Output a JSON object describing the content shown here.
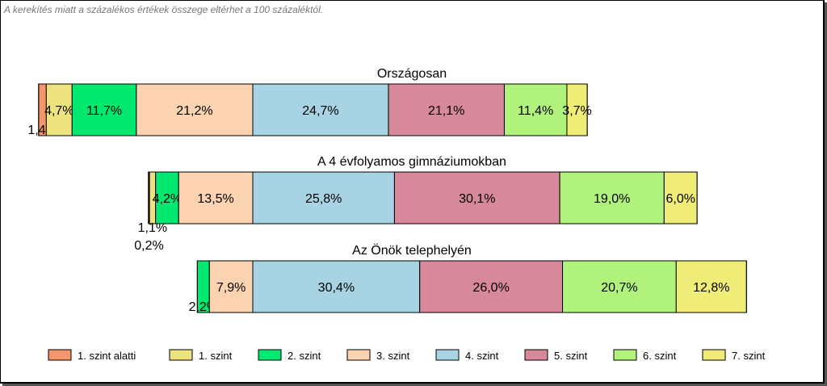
{
  "note": "A kerekítés miatt a  százalékos értékek összege eltérhet a 100 százaléktól.",
  "chart_data": {
    "type": "bar",
    "stacked": true,
    "orientation": "horizontal",
    "categories": [
      "1. szint alatti",
      "1. szint",
      "2. szint",
      "3. szint",
      "4. szint",
      "5. szint",
      "6. szint",
      "7. szint"
    ],
    "colors": [
      "#f4956b",
      "#ece37e",
      "#00e86f",
      "#fbd3b0",
      "#a7d3e3",
      "#d7889a",
      "#b0f27c",
      "#f0ec78"
    ],
    "groups": [
      {
        "title": "Országosan",
        "values": [
          1.4,
          4.7,
          11.7,
          21.2,
          24.7,
          21.1,
          11.4,
          3.7
        ],
        "labels": [
          "1,4%",
          "4,7%",
          "11,7%",
          "21,2%",
          "24,7%",
          "21,1%",
          "11,4%",
          "3,7%"
        ]
      },
      {
        "title": "A 4 évfolyamos gimnáziumokban",
        "values": [
          0.2,
          1.1,
          4.2,
          13.5,
          25.8,
          30.1,
          19.0,
          6.0
        ],
        "labels": [
          "0,2%",
          "1,1%",
          "4,2%",
          "13,5%",
          "25,8%",
          "30,1%",
          "19,0%",
          "6,0%"
        ]
      },
      {
        "title": "Az Önök telephelyén",
        "values": [
          0,
          0,
          2.2,
          7.9,
          30.4,
          26.0,
          20.7,
          12.8
        ],
        "labels": [
          "",
          "",
          "2,2%",
          "7,9%",
          "30,4%",
          "26,0%",
          "20,7%",
          "12,8%"
        ]
      }
    ],
    "legend_position": "bottom",
    "grid": false
  }
}
